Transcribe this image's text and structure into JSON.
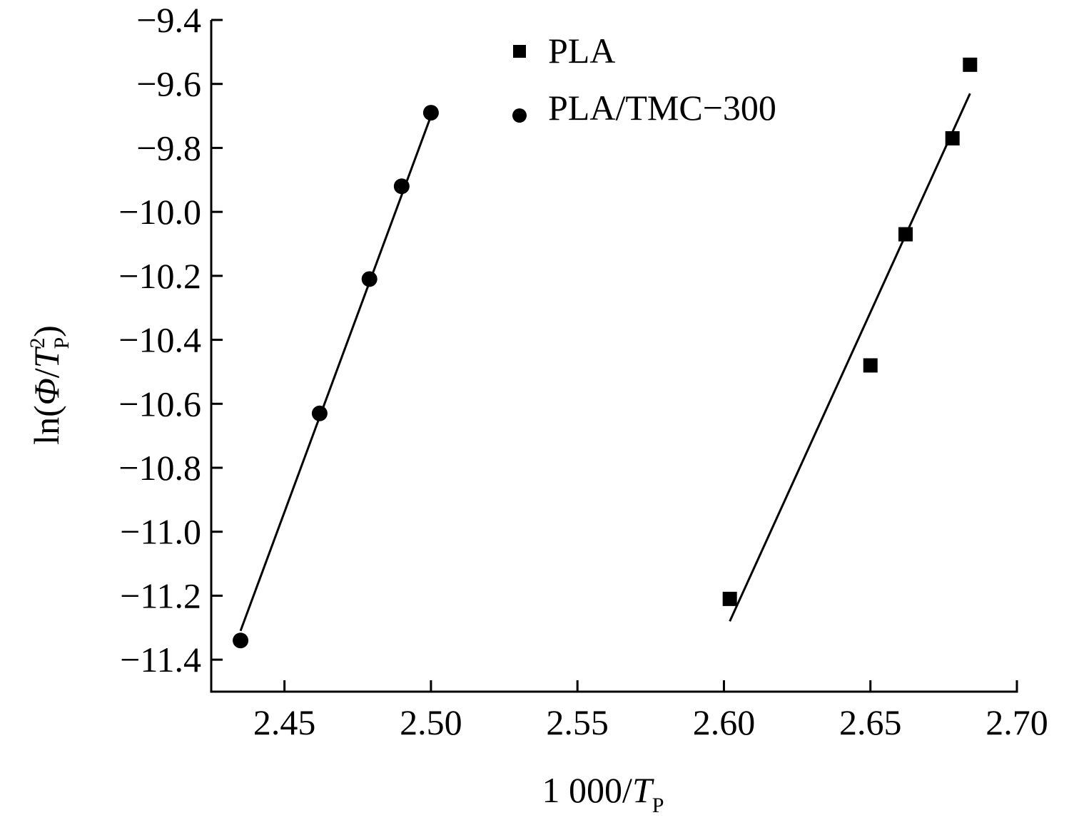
{
  "chart_data": {
    "type": "scatter",
    "title": "",
    "xlabel": {
      "prefix": "1 000/",
      "var": "T",
      "sub": "P"
    },
    "ylabel": {
      "prefix": "ln(",
      "var1": "Φ",
      "slash": "/",
      "var2": "T",
      "sup": "2",
      "sub": "P",
      "suffix": ")"
    },
    "xlim": [
      2.425,
      2.7
    ],
    "ylim": [
      -11.5,
      -9.4
    ],
    "xticks": [
      "2.45",
      "2.50",
      "2.55",
      "2.60",
      "2.65",
      "2.70"
    ],
    "yticks": [
      "−9.4",
      "−9.6",
      "−9.8",
      "−10.0",
      "−10.2",
      "−10.4",
      "−10.6",
      "−10.8",
      "−11.0",
      "−11.2",
      "−11.4"
    ],
    "grid": false,
    "legend_position": "top-center",
    "series": [
      {
        "name": "PLA",
        "marker": "square",
        "color": "#000000",
        "x": [
          2.602,
          2.65,
          2.662,
          2.678,
          2.684
        ],
        "y": [
          -11.21,
          -10.48,
          -10.07,
          -9.77,
          -9.54
        ],
        "fit": {
          "x": [
            2.602,
            2.684
          ],
          "y": [
            -11.28,
            -9.63
          ]
        }
      },
      {
        "name": "PLA/TMC−300",
        "marker": "circle",
        "color": "#000000",
        "x": [
          2.435,
          2.462,
          2.479,
          2.49,
          2.5
        ],
        "y": [
          -11.34,
          -10.63,
          -10.21,
          -9.92,
          -9.69
        ],
        "fit": {
          "x": [
            2.435,
            2.5
          ],
          "y": [
            -11.31,
            -9.7
          ]
        }
      }
    ]
  }
}
